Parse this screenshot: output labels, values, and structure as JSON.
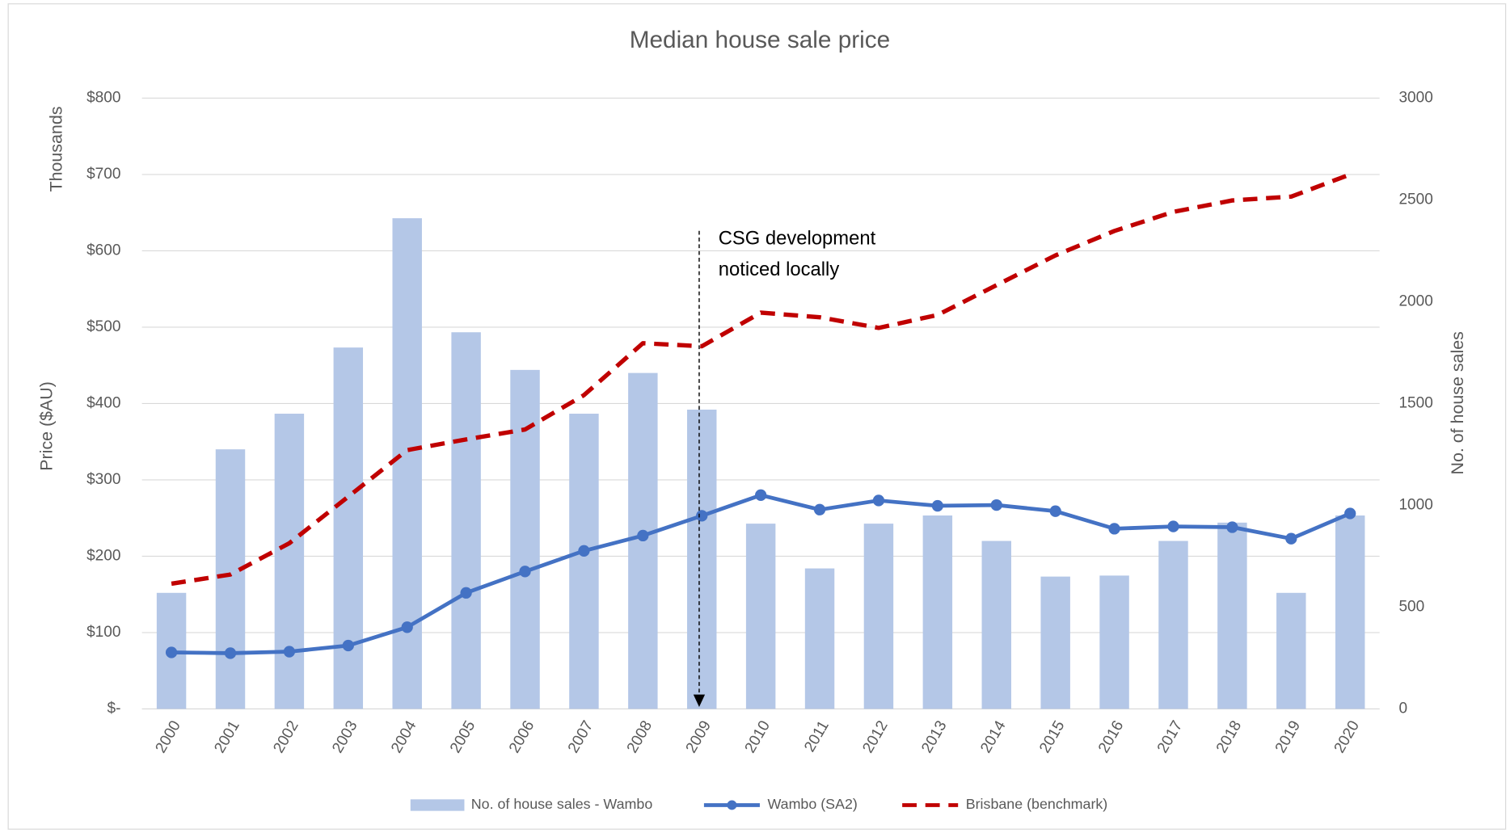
{
  "chart_data": {
    "type": "bar",
    "title": "Median house sale price",
    "y_label": "Price ($AU)",
    "y_unit_label": "Thousands",
    "y2_label": "No. of house sales",
    "annotation": [
      "CSG development",
      "noticed locally"
    ],
    "categories": [
      "2000",
      "2001",
      "2002",
      "2003",
      "2004",
      "2005",
      "2006",
      "2007",
      "2008",
      "2009",
      "2010",
      "2011",
      "2012",
      "2013",
      "2014",
      "2015",
      "2016",
      "2017",
      "2018",
      "2019",
      "2020"
    ],
    "series": [
      {
        "name": "No. of house sales - Wambo",
        "type": "bar",
        "axis": "y2",
        "color": "#b4c7e7",
        "values": [
          570,
          1275,
          1450,
          1775,
          2410,
          1850,
          1665,
          1450,
          1650,
          1470,
          910,
          690,
          910,
          950,
          825,
          650,
          655,
          825,
          915,
          570,
          950
        ]
      },
      {
        "name": "Wambo (SA2)",
        "type": "line",
        "marker": true,
        "color": "#4472c4",
        "values": [
          74,
          73,
          75,
          83,
          107,
          152,
          180,
          207,
          227,
          253,
          280,
          261,
          273,
          266,
          267,
          259,
          236,
          239,
          238,
          223,
          256
        ]
      },
      {
        "name": "Brisbane (benchmark)",
        "type": "line",
        "dashed": true,
        "color": "#c00000",
        "values": [
          164,
          176,
          217,
          278,
          339,
          353,
          366,
          411,
          479,
          475,
          519,
          513,
          499,
          516,
          555,
          594,
          626,
          651,
          666,
          671,
          700
        ]
      }
    ],
    "ylim": [
      0,
      800
    ],
    "yticks": [
      {
        "value": 0,
        "label": "$-"
      },
      {
        "value": 100,
        "label": "$100"
      },
      {
        "value": 200,
        "label": "$200"
      },
      {
        "value": 300,
        "label": "$300"
      },
      {
        "value": 400,
        "label": "$400"
      },
      {
        "value": 500,
        "label": "$500"
      },
      {
        "value": 600,
        "label": "$600"
      },
      {
        "value": 700,
        "label": "$700"
      },
      {
        "value": 800,
        "label": "$800"
      }
    ],
    "y2lim": [
      0,
      3000
    ],
    "y2ticks": [
      0,
      500,
      1000,
      1500,
      2000,
      2500,
      3000
    ],
    "grid": true,
    "legend": "bottom"
  }
}
